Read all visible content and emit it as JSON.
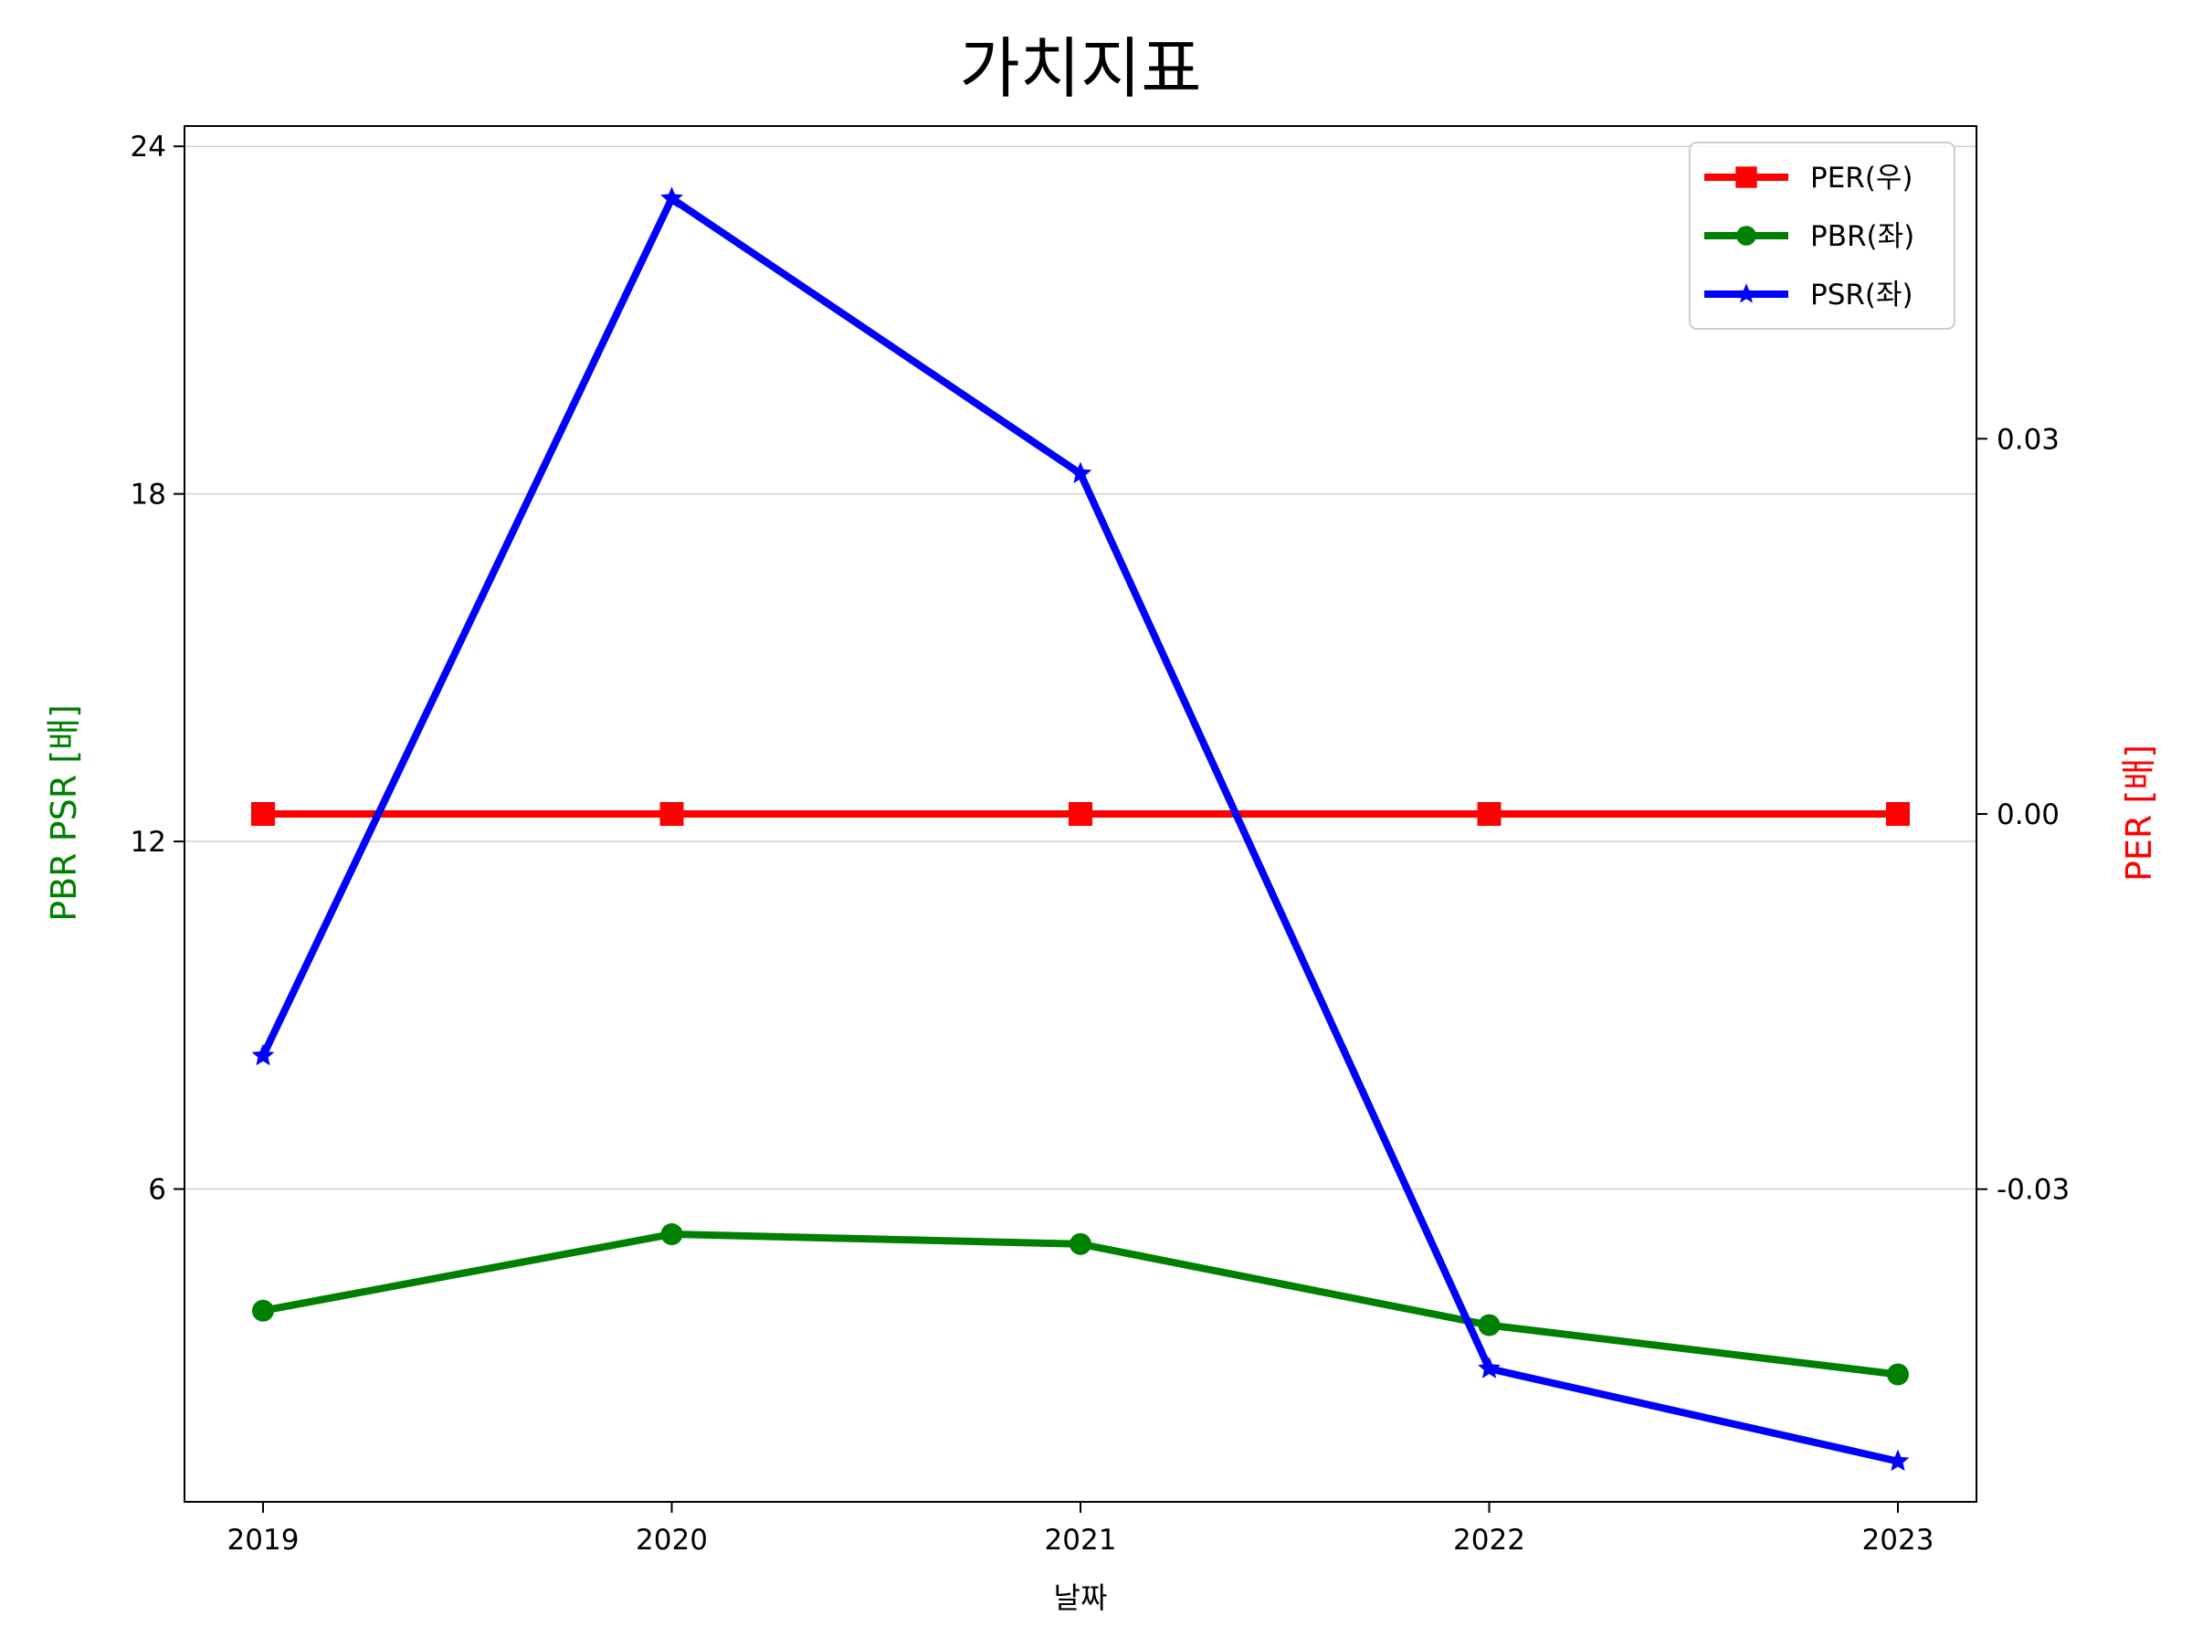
{
  "chart_data": {
    "type": "line",
    "title": "가치지표",
    "xlabel": "날짜",
    "ylabel_left": "PBR PSR [배]",
    "ylabel_right": "PER [배]",
    "categories": [
      "2019",
      "2020",
      "2021",
      "2022",
      "2023"
    ],
    "y_left": {
      "ticks": [
        6,
        12,
        18,
        24
      ],
      "tick_labels": [
        "6",
        "12",
        "18",
        "24"
      ],
      "range": [
        0.6,
        24.35
      ]
    },
    "y_right": {
      "ticks": [
        -0.03,
        0.0,
        0.03
      ],
      "tick_labels": [
        "-0.03",
        "0.00",
        "0.03"
      ],
      "range": [
        -0.055,
        0.055
      ]
    },
    "grid": "horizontal, left axis",
    "legend_position": "top-right",
    "series": [
      {
        "name": "PER(우)",
        "axis": "right",
        "color": "#ff0000",
        "marker": "square",
        "values": [
          0.0,
          0.0,
          0.0,
          0.0,
          0.0
        ]
      },
      {
        "name": "PBR(좌)",
        "axis": "left",
        "color": "#008000",
        "marker": "circle",
        "values": [
          3.9,
          5.22,
          5.05,
          3.65,
          2.8
        ]
      },
      {
        "name": "PSR(좌)",
        "axis": "left",
        "color": "#0000ff",
        "marker": "star",
        "values": [
          8.3,
          23.1,
          18.35,
          2.9,
          1.3
        ]
      }
    ]
  }
}
